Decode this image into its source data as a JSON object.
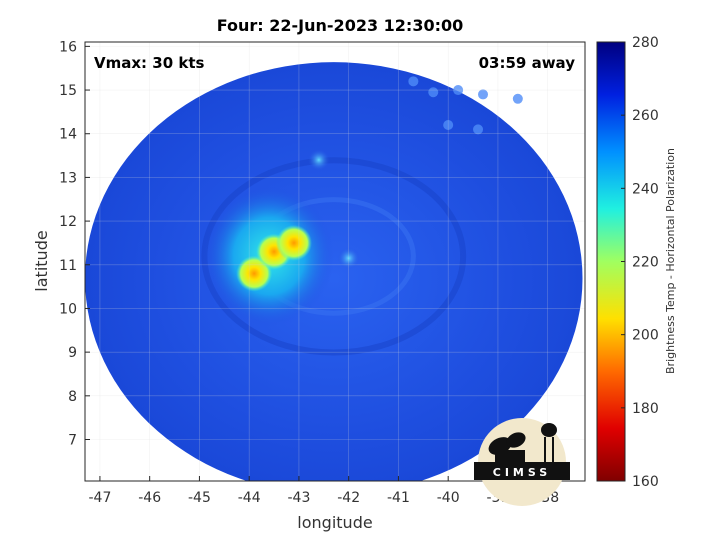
{
  "chart_data": {
    "type": "heatmap",
    "title": "Four: 22-Jun-2023 12:30:00",
    "xlabel": "longitude",
    "ylabel": "latitude",
    "xlim": [
      -47.3,
      -37.25
    ],
    "ylim": [
      6.05,
      16.1
    ],
    "x_ticks": [
      -47,
      -46,
      -45,
      -44,
      -43,
      -42,
      -41,
      -40,
      -39,
      -38
    ],
    "y_ticks": [
      7,
      8,
      9,
      10,
      11,
      12,
      13,
      14,
      15,
      16
    ],
    "grid": true,
    "annotations": {
      "vmax": "Vmax: 30 kts",
      "away": "03:59 away"
    },
    "colorbar": {
      "label": "Brightness Temp - Horizontal Polarization",
      "min": 160,
      "max": 280,
      "ticks": [
        160,
        180,
        200,
        220,
        240,
        260,
        280
      ]
    },
    "features": [
      {
        "name": "swath",
        "lon": -42.3,
        "lat": 11.1,
        "radius_deg": 5.0,
        "value": 258
      },
      {
        "name": "deep-convection",
        "lon": -43.6,
        "lat": 11.2,
        "value": 240
      },
      {
        "name": "core-1",
        "lon": -43.9,
        "lat": 10.8,
        "value": 205
      },
      {
        "name": "core-2",
        "lon": -43.5,
        "lat": 11.3,
        "value": 212
      },
      {
        "name": "core-3",
        "lon": -43.1,
        "lat": 11.5,
        "value": 218
      },
      {
        "name": "small-cell",
        "lon": -42.0,
        "lat": 11.15,
        "value": 244
      },
      {
        "name": "cell-north",
        "lon": -42.6,
        "lat": 13.4,
        "value": 246
      }
    ],
    "logo": "CIMSS"
  },
  "colors": {
    "swath_base": "#1f4fe0",
    "background": "#ffffff",
    "grid": "#d9d9d9"
  }
}
